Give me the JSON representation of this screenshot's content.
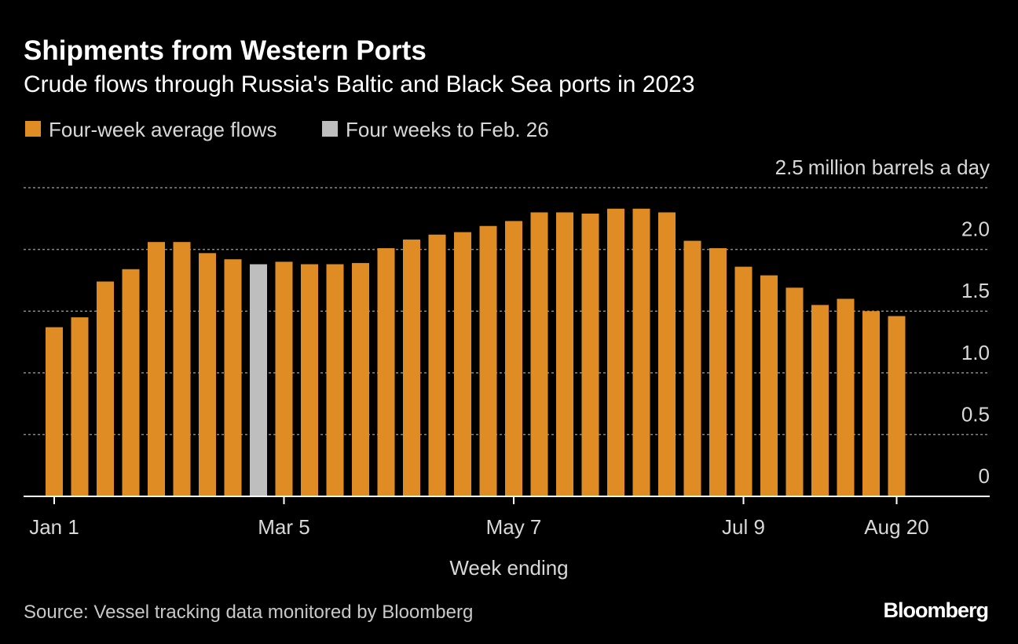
{
  "chart_data": {
    "type": "bar",
    "title": "Shipments from Western Ports",
    "subtitle": "Crude flows through Russia's Baltic and Black Sea ports in 2023",
    "legend": [
      {
        "label": "Four-week average flows",
        "color": "#E08C24"
      },
      {
        "label": "Four weeks to Feb. 26",
        "color": "#BEBEBE"
      }
    ],
    "unit_label": "million barrels a day",
    "xlabel": "Week ending",
    "ylim": [
      0,
      2.5
    ],
    "yticks": [
      {
        "value": 0,
        "label": "0"
      },
      {
        "value": 0.5,
        "label": "0.5"
      },
      {
        "value": 1.0,
        "label": "1.0"
      },
      {
        "value": 1.5,
        "label": "1.5"
      },
      {
        "value": 2.0,
        "label": "2.0"
      },
      {
        "value": 2.5,
        "label": "2.5"
      }
    ],
    "xticks": [
      {
        "index": 0,
        "label": "Jan 1"
      },
      {
        "index": 9,
        "label": "Mar 5"
      },
      {
        "index": 18,
        "label": "May 7"
      },
      {
        "index": 27,
        "label": "Jul 9"
      },
      {
        "index": 33,
        "label": "Aug 20"
      }
    ],
    "highlight_index": 8,
    "values": [
      1.37,
      1.45,
      1.74,
      1.84,
      2.06,
      2.06,
      1.97,
      1.92,
      1.88,
      1.9,
      1.88,
      1.88,
      1.89,
      2.01,
      2.08,
      2.12,
      2.14,
      2.19,
      2.23,
      2.3,
      2.3,
      2.29,
      2.33,
      2.33,
      2.3,
      2.07,
      2.01,
      1.86,
      1.79,
      1.69,
      1.55,
      1.6,
      1.5,
      1.46
    ],
    "source": "Source: Vessel tracking data monitored by Bloomberg",
    "logo": "Bloomberg"
  }
}
